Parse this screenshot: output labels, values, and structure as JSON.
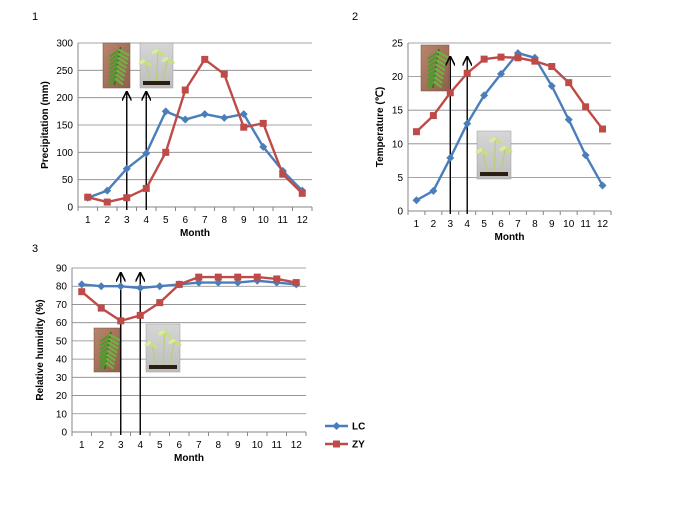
{
  "colors": {
    "LC": "#4a7ebb",
    "ZY": "#be4b48"
  },
  "legend": [
    {
      "name": "LC"
    },
    {
      "name": "ZY"
    }
  ],
  "chart_data": [
    {
      "type": "line",
      "panel_label": "1",
      "xlabel": "Month",
      "ylabel": "Precipitation (mm)",
      "x": [
        1,
        2,
        3,
        4,
        5,
        6,
        7,
        8,
        9,
        10,
        11,
        12
      ],
      "ylim": [
        0,
        300
      ],
      "yticks": [
        0,
        50,
        100,
        150,
        200,
        250,
        300
      ],
      "grid": true,
      "series": [
        {
          "name": "LC",
          "values": [
            17,
            30,
            70,
            98,
            175,
            160,
            170,
            163,
            170,
            110,
            66,
            30
          ]
        },
        {
          "name": "ZY",
          "values": [
            18,
            9,
            17,
            34,
            100,
            214,
            270,
            243,
            146,
            153,
            60,
            25
          ]
        }
      ],
      "arrows_at_month": [
        3,
        4
      ],
      "photos": [
        "fern-photo",
        "seedling-photo"
      ]
    },
    {
      "type": "line",
      "panel_label": "2",
      "xlabel": "Month",
      "ylabel": "Temperature (℃)",
      "x": [
        1,
        2,
        3,
        4,
        5,
        6,
        7,
        8,
        9,
        10,
        11,
        12
      ],
      "ylim": [
        0,
        25
      ],
      "yticks": [
        0,
        5,
        10,
        15,
        20,
        25
      ],
      "grid": true,
      "series": [
        {
          "name": "LC",
          "values": [
            1.6,
            3.0,
            7.9,
            13.0,
            17.2,
            20.4,
            23.5,
            22.8,
            18.6,
            13.6,
            8.3,
            3.8
          ]
        },
        {
          "name": "ZY",
          "values": [
            11.8,
            14.2,
            17.6,
            20.5,
            22.6,
            22.9,
            22.8,
            22.3,
            21.5,
            19.1,
            15.5,
            12.2
          ]
        }
      ],
      "arrows_at_month": [
        3,
        4
      ],
      "photos": [
        "fern-photo",
        "seedling-photo"
      ]
    },
    {
      "type": "line",
      "panel_label": "3",
      "xlabel": "Month",
      "ylabel": "Relative humidity (%)",
      "x": [
        1,
        2,
        3,
        4,
        5,
        6,
        7,
        8,
        9,
        10,
        11,
        12
      ],
      "ylim": [
        0,
        90
      ],
      "yticks": [
        0,
        10,
        20,
        30,
        40,
        50,
        60,
        70,
        80,
        90
      ],
      "grid": true,
      "series": [
        {
          "name": "LC",
          "values": [
            81,
            80,
            80,
            79,
            80,
            81,
            82,
            82,
            82,
            83,
            82,
            81
          ]
        },
        {
          "name": "ZY",
          "values": [
            77,
            68,
            61,
            64,
            71,
            81,
            85,
            85,
            85,
            85,
            84,
            82
          ]
        }
      ],
      "arrows_at_month": [
        3,
        4
      ],
      "photos": [
        "fern-photo",
        "seedling-photo"
      ]
    }
  ]
}
